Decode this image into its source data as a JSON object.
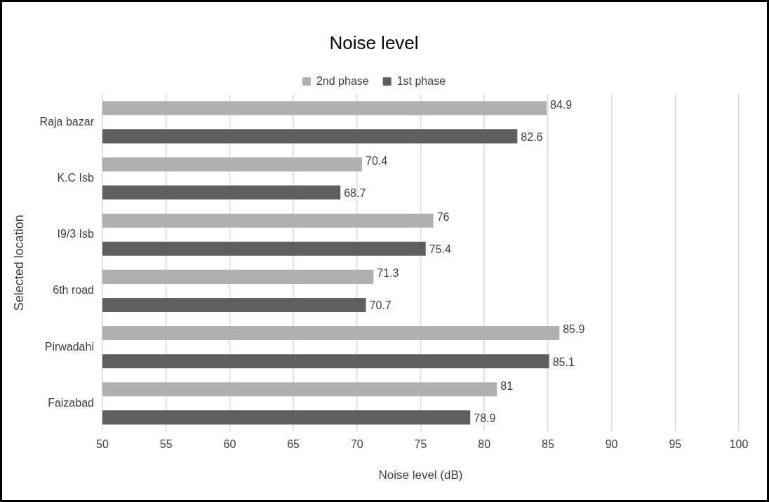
{
  "chart_data": {
    "type": "bar",
    "orientation": "horizontal",
    "title": "Noise level",
    "xlabel": "Noise level (dB)",
    "ylabel": "Selected location",
    "categories": [
      "Raja bazar",
      "K.C Isb",
      "I9/3 Isb",
      "6th road",
      "Pirwadahi",
      "Faizabad"
    ],
    "series": [
      {
        "name": "2nd phase",
        "color": "#b0b0b0",
        "values": [
          84.9,
          70.4,
          76,
          71.3,
          85.9,
          81
        ]
      },
      {
        "name": "1st phase",
        "color": "#5f5f5f",
        "values": [
          82.6,
          68.7,
          75.4,
          70.7,
          85.1,
          78.9
        ]
      }
    ],
    "xlim": [
      50,
      100
    ],
    "xticks": [
      50,
      55,
      60,
      65,
      70,
      75,
      80,
      85,
      90,
      95,
      100
    ],
    "grid": "x",
    "legend": "top",
    "data_labels": true
  }
}
